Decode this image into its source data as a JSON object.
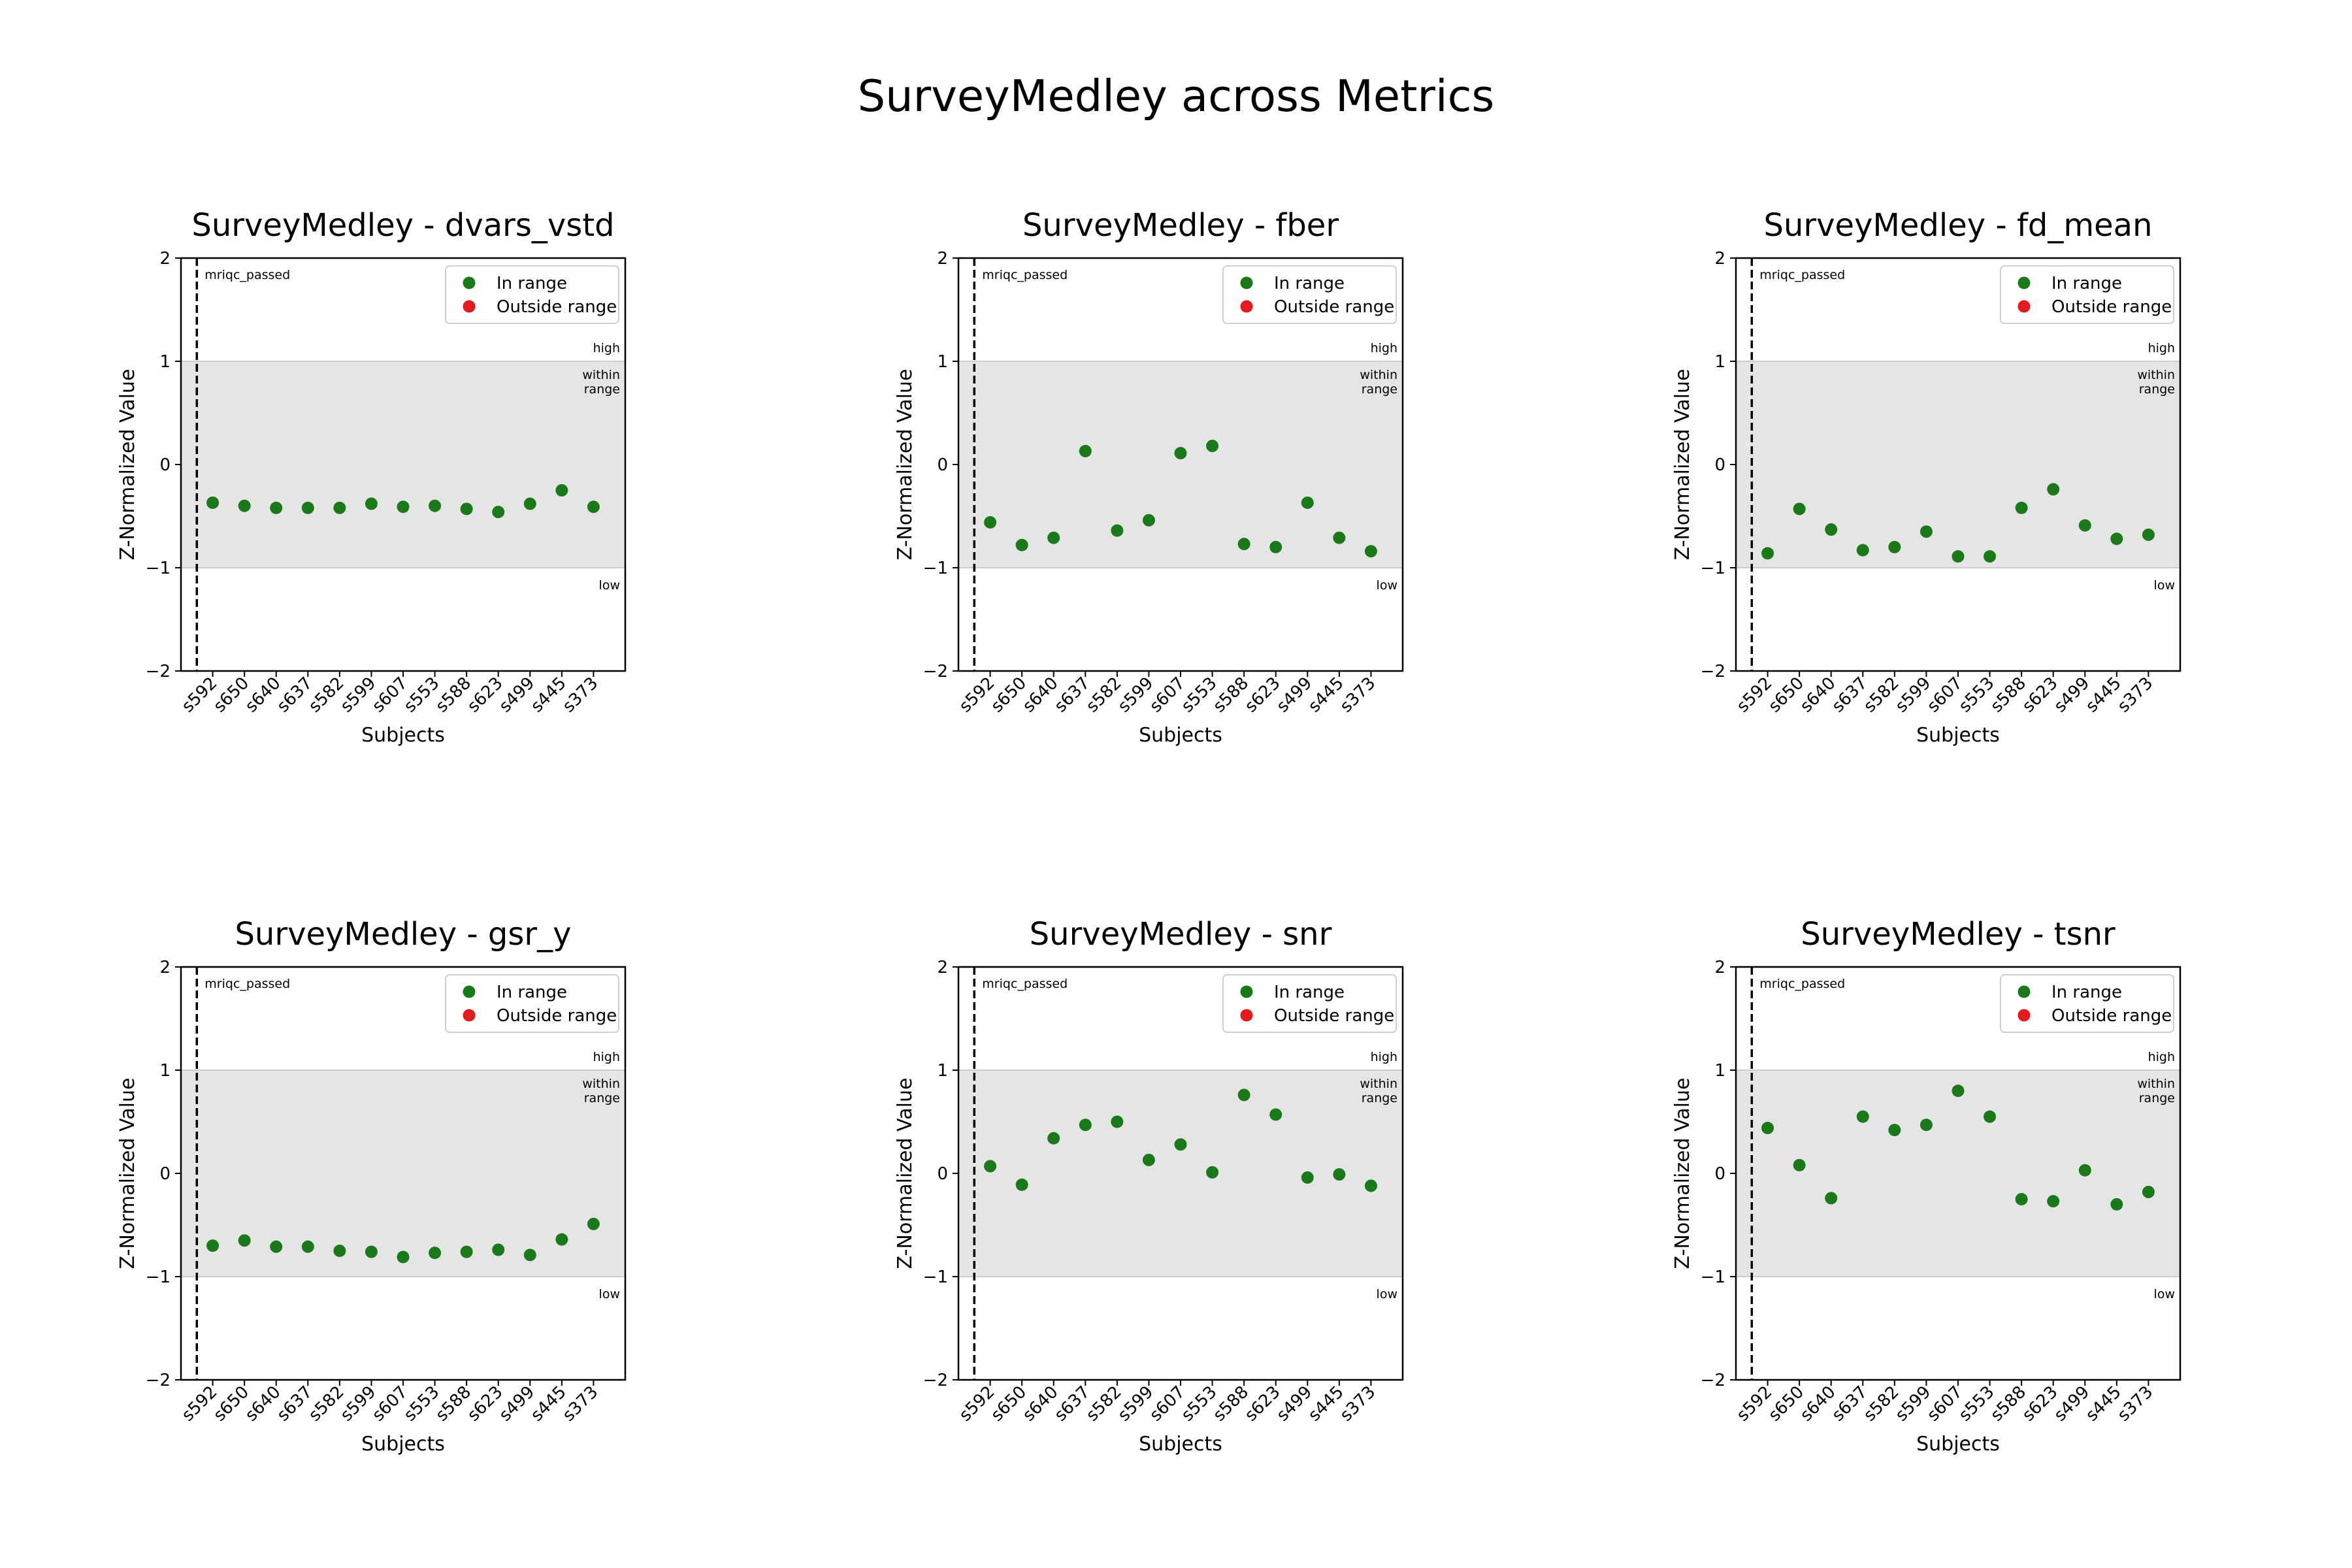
{
  "figure": {
    "title": "SurveyMedley across Metrics"
  },
  "colors": {
    "in_range": "#1a7a1a",
    "outside_range": "#e41a1c",
    "band": "#e5e5e5"
  },
  "chart_data": [
    {
      "type": "scatter",
      "title": "SurveyMedley - dvars_vstd",
      "xlabel": "Subjects",
      "ylabel": "Z-Normalized Value",
      "ylim": [
        -2,
        2
      ],
      "yticks": [
        "−2",
        "−1",
        "0",
        "1",
        "2"
      ],
      "categories": [
        "s592",
        "s650",
        "s640",
        "s637",
        "s582",
        "s599",
        "s607",
        "s553",
        "s588",
        "s623",
        "s499",
        "s445",
        "s373"
      ],
      "series": [
        {
          "name": "In range",
          "values": [
            -0.37,
            -0.4,
            -0.42,
            -0.42,
            -0.42,
            -0.38,
            -0.41,
            -0.4,
            -0.43,
            -0.46,
            -0.38,
            -0.25,
            -0.41
          ]
        },
        {
          "name": "Outside range",
          "values": []
        }
      ],
      "band": {
        "range": [
          -1,
          1
        ],
        "high_label": "high",
        "within_label_1": "within",
        "within_label_2": "range",
        "low_label": "low"
      },
      "vline_label": "mriqc_passed",
      "legend": "top-right",
      "grid": false
    },
    {
      "type": "scatter",
      "title": "SurveyMedley - fber",
      "xlabel": "Subjects",
      "ylabel": "Z-Normalized Value",
      "ylim": [
        -2,
        2
      ],
      "yticks": [
        "−2",
        "−1",
        "0",
        "1",
        "2"
      ],
      "categories": [
        "s592",
        "s650",
        "s640",
        "s637",
        "s582",
        "s599",
        "s607",
        "s553",
        "s588",
        "s623",
        "s499",
        "s445",
        "s373"
      ],
      "series": [
        {
          "name": "In range",
          "values": [
            -0.56,
            -0.78,
            -0.71,
            0.13,
            -0.64,
            -0.54,
            0.11,
            0.18,
            -0.77,
            -0.8,
            -0.37,
            -0.71,
            -0.84
          ]
        },
        {
          "name": "Outside range",
          "values": []
        }
      ],
      "band": {
        "range": [
          -1,
          1
        ],
        "high_label": "high",
        "within_label_1": "within",
        "within_label_2": "range",
        "low_label": "low"
      },
      "vline_label": "mriqc_passed",
      "legend": "top-right",
      "grid": false
    },
    {
      "type": "scatter",
      "title": "SurveyMedley - fd_mean",
      "xlabel": "Subjects",
      "ylabel": "Z-Normalized Value",
      "ylim": [
        -2,
        2
      ],
      "yticks": [
        "−2",
        "−1",
        "0",
        "1",
        "2"
      ],
      "categories": [
        "s592",
        "s650",
        "s640",
        "s637",
        "s582",
        "s599",
        "s607",
        "s553",
        "s588",
        "s623",
        "s499",
        "s445",
        "s373"
      ],
      "series": [
        {
          "name": "In range",
          "values": [
            -0.86,
            -0.43,
            -0.63,
            -0.83,
            -0.8,
            -0.65,
            -0.89,
            -0.89,
            -0.42,
            -0.24,
            -0.59,
            -0.72,
            -0.68
          ]
        },
        {
          "name": "Outside range",
          "values": []
        }
      ],
      "band": {
        "range": [
          -1,
          1
        ],
        "high_label": "high",
        "within_label_1": "within",
        "within_label_2": "range",
        "low_label": "low"
      },
      "vline_label": "mriqc_passed",
      "legend": "top-right",
      "grid": false
    },
    {
      "type": "scatter",
      "title": "SurveyMedley - gsr_y",
      "xlabel": "Subjects",
      "ylabel": "Z-Normalized Value",
      "ylim": [
        -2,
        2
      ],
      "yticks": [
        "−2",
        "−1",
        "0",
        "1",
        "2"
      ],
      "categories": [
        "s592",
        "s650",
        "s640",
        "s637",
        "s582",
        "s599",
        "s607",
        "s553",
        "s588",
        "s623",
        "s499",
        "s445",
        "s373"
      ],
      "series": [
        {
          "name": "In range",
          "values": [
            -0.7,
            -0.65,
            -0.71,
            -0.71,
            -0.75,
            -0.76,
            -0.81,
            -0.77,
            -0.76,
            -0.74,
            -0.79,
            -0.64,
            -0.49
          ]
        },
        {
          "name": "Outside range",
          "values": []
        }
      ],
      "band": {
        "range": [
          -1,
          1
        ],
        "high_label": "high",
        "within_label_1": "within",
        "within_label_2": "range",
        "low_label": "low"
      },
      "vline_label": "mriqc_passed",
      "legend": "top-right",
      "grid": false
    },
    {
      "type": "scatter",
      "title": "SurveyMedley - snr",
      "xlabel": "Subjects",
      "ylabel": "Z-Normalized Value",
      "ylim": [
        -2,
        2
      ],
      "yticks": [
        "−2",
        "−1",
        "0",
        "1",
        "2"
      ],
      "categories": [
        "s592",
        "s650",
        "s640",
        "s637",
        "s582",
        "s599",
        "s607",
        "s553",
        "s588",
        "s623",
        "s499",
        "s445",
        "s373"
      ],
      "series": [
        {
          "name": "In range",
          "values": [
            0.07,
            -0.11,
            0.34,
            0.47,
            0.5,
            0.13,
            0.28,
            0.01,
            0.76,
            0.57,
            -0.04,
            -0.01,
            -0.12
          ]
        },
        {
          "name": "Outside range",
          "values": []
        }
      ],
      "band": {
        "range": [
          -1,
          1
        ],
        "high_label": "high",
        "within_label_1": "within",
        "within_label_2": "range",
        "low_label": "low"
      },
      "vline_label": "mriqc_passed",
      "legend": "top-right",
      "grid": false
    },
    {
      "type": "scatter",
      "title": "SurveyMedley - tsnr",
      "xlabel": "Subjects",
      "ylabel": "Z-Normalized Value",
      "ylim": [
        -2,
        2
      ],
      "yticks": [
        "−2",
        "−1",
        "0",
        "1",
        "2"
      ],
      "categories": [
        "s592",
        "s650",
        "s640",
        "s637",
        "s582",
        "s599",
        "s607",
        "s553",
        "s588",
        "s623",
        "s499",
        "s445",
        "s373"
      ],
      "series": [
        {
          "name": "In range",
          "values": [
            0.44,
            0.08,
            -0.24,
            0.55,
            0.42,
            0.47,
            0.8,
            0.55,
            -0.25,
            -0.27,
            0.03,
            -0.3,
            -0.18
          ]
        },
        {
          "name": "Outside range",
          "values": []
        }
      ],
      "band": {
        "range": [
          -1,
          1
        ],
        "high_label": "high",
        "within_label_1": "within",
        "within_label_2": "range",
        "low_label": "low"
      },
      "vline_label": "mriqc_passed",
      "legend": "top-right",
      "grid": false
    }
  ]
}
